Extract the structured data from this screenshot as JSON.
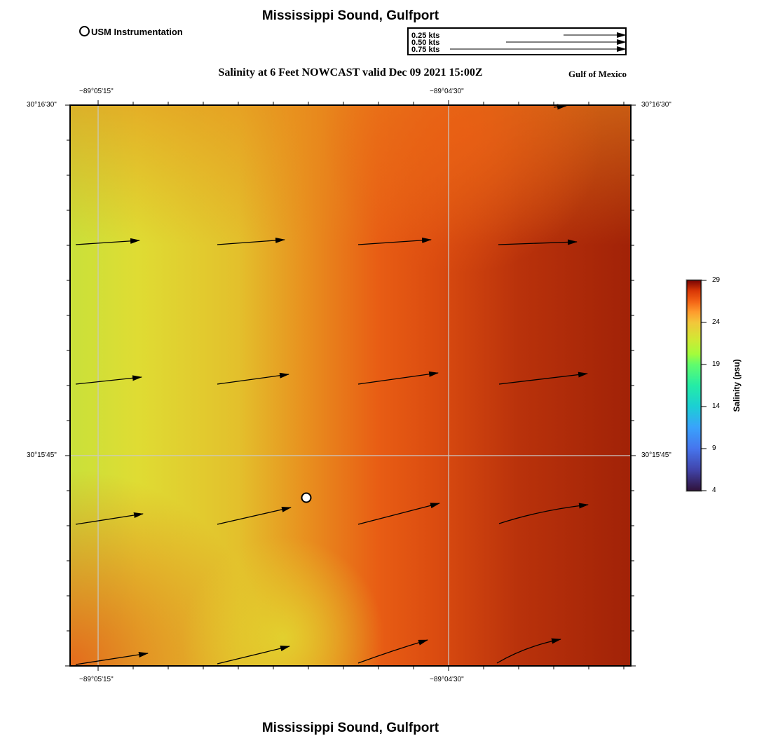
{
  "header": {
    "title": "Mississippi Sound, Gulfport",
    "subtitle": "Salinity at 6 Feet NOWCAST valid Dec 09 2021 15:00Z",
    "region": "Gulf of Mexico",
    "footer_title": "Mississippi Sound, Gulfport"
  },
  "legend": {
    "marker_label": "USM Instrumentation",
    "vector_scale": [
      "0.25 kts",
      "0.50 kts",
      "0.75 kts"
    ]
  },
  "axes": {
    "lon_ticks": [
      "−89°05'15\"",
      "−89°04'30\""
    ],
    "lat_ticks": [
      "30°16'30\"",
      "30°15'45\""
    ]
  },
  "colorbar": {
    "label": "Salinity (psu)",
    "ticks": [
      "29",
      "24",
      "19",
      "14",
      "9",
      "4"
    ],
    "range": [
      4,
      29
    ]
  },
  "chart_data": {
    "type": "heatmap",
    "variable": "Salinity",
    "units": "psu",
    "value_range": [
      4,
      29
    ],
    "field_description_grid_rows_north_to_south": [
      [
        21,
        21.5,
        22.5,
        23.5,
        24.5,
        25,
        25.5,
        26.5
      ],
      [
        19.5,
        19.5,
        21.5,
        23,
        24.5,
        25.5,
        27,
        27.5
      ],
      [
        18.5,
        19.5,
        21.5,
        24,
        25.5,
        27,
        28,
        28.5
      ],
      [
        17.5,
        19.5,
        22,
        24.5,
        26,
        27,
        28,
        28.5
      ],
      [
        19,
        20.5,
        22.5,
        24.5,
        26,
        27,
        28,
        28.5
      ],
      [
        23.5,
        21.5,
        20.5,
        22.5,
        25,
        26,
        27,
        27.5
      ]
    ],
    "current_vectors_kts": [
      [
        0.34,
        0.36,
        0.39,
        0.42
      ],
      [
        0.35,
        0.38,
        0.43,
        0.47
      ],
      [
        0.36,
        0.4,
        0.45,
        0.49
      ],
      [
        0.39,
        0.39,
        0.38,
        0.36
      ]
    ],
    "station": "USM Instrumentation"
  }
}
